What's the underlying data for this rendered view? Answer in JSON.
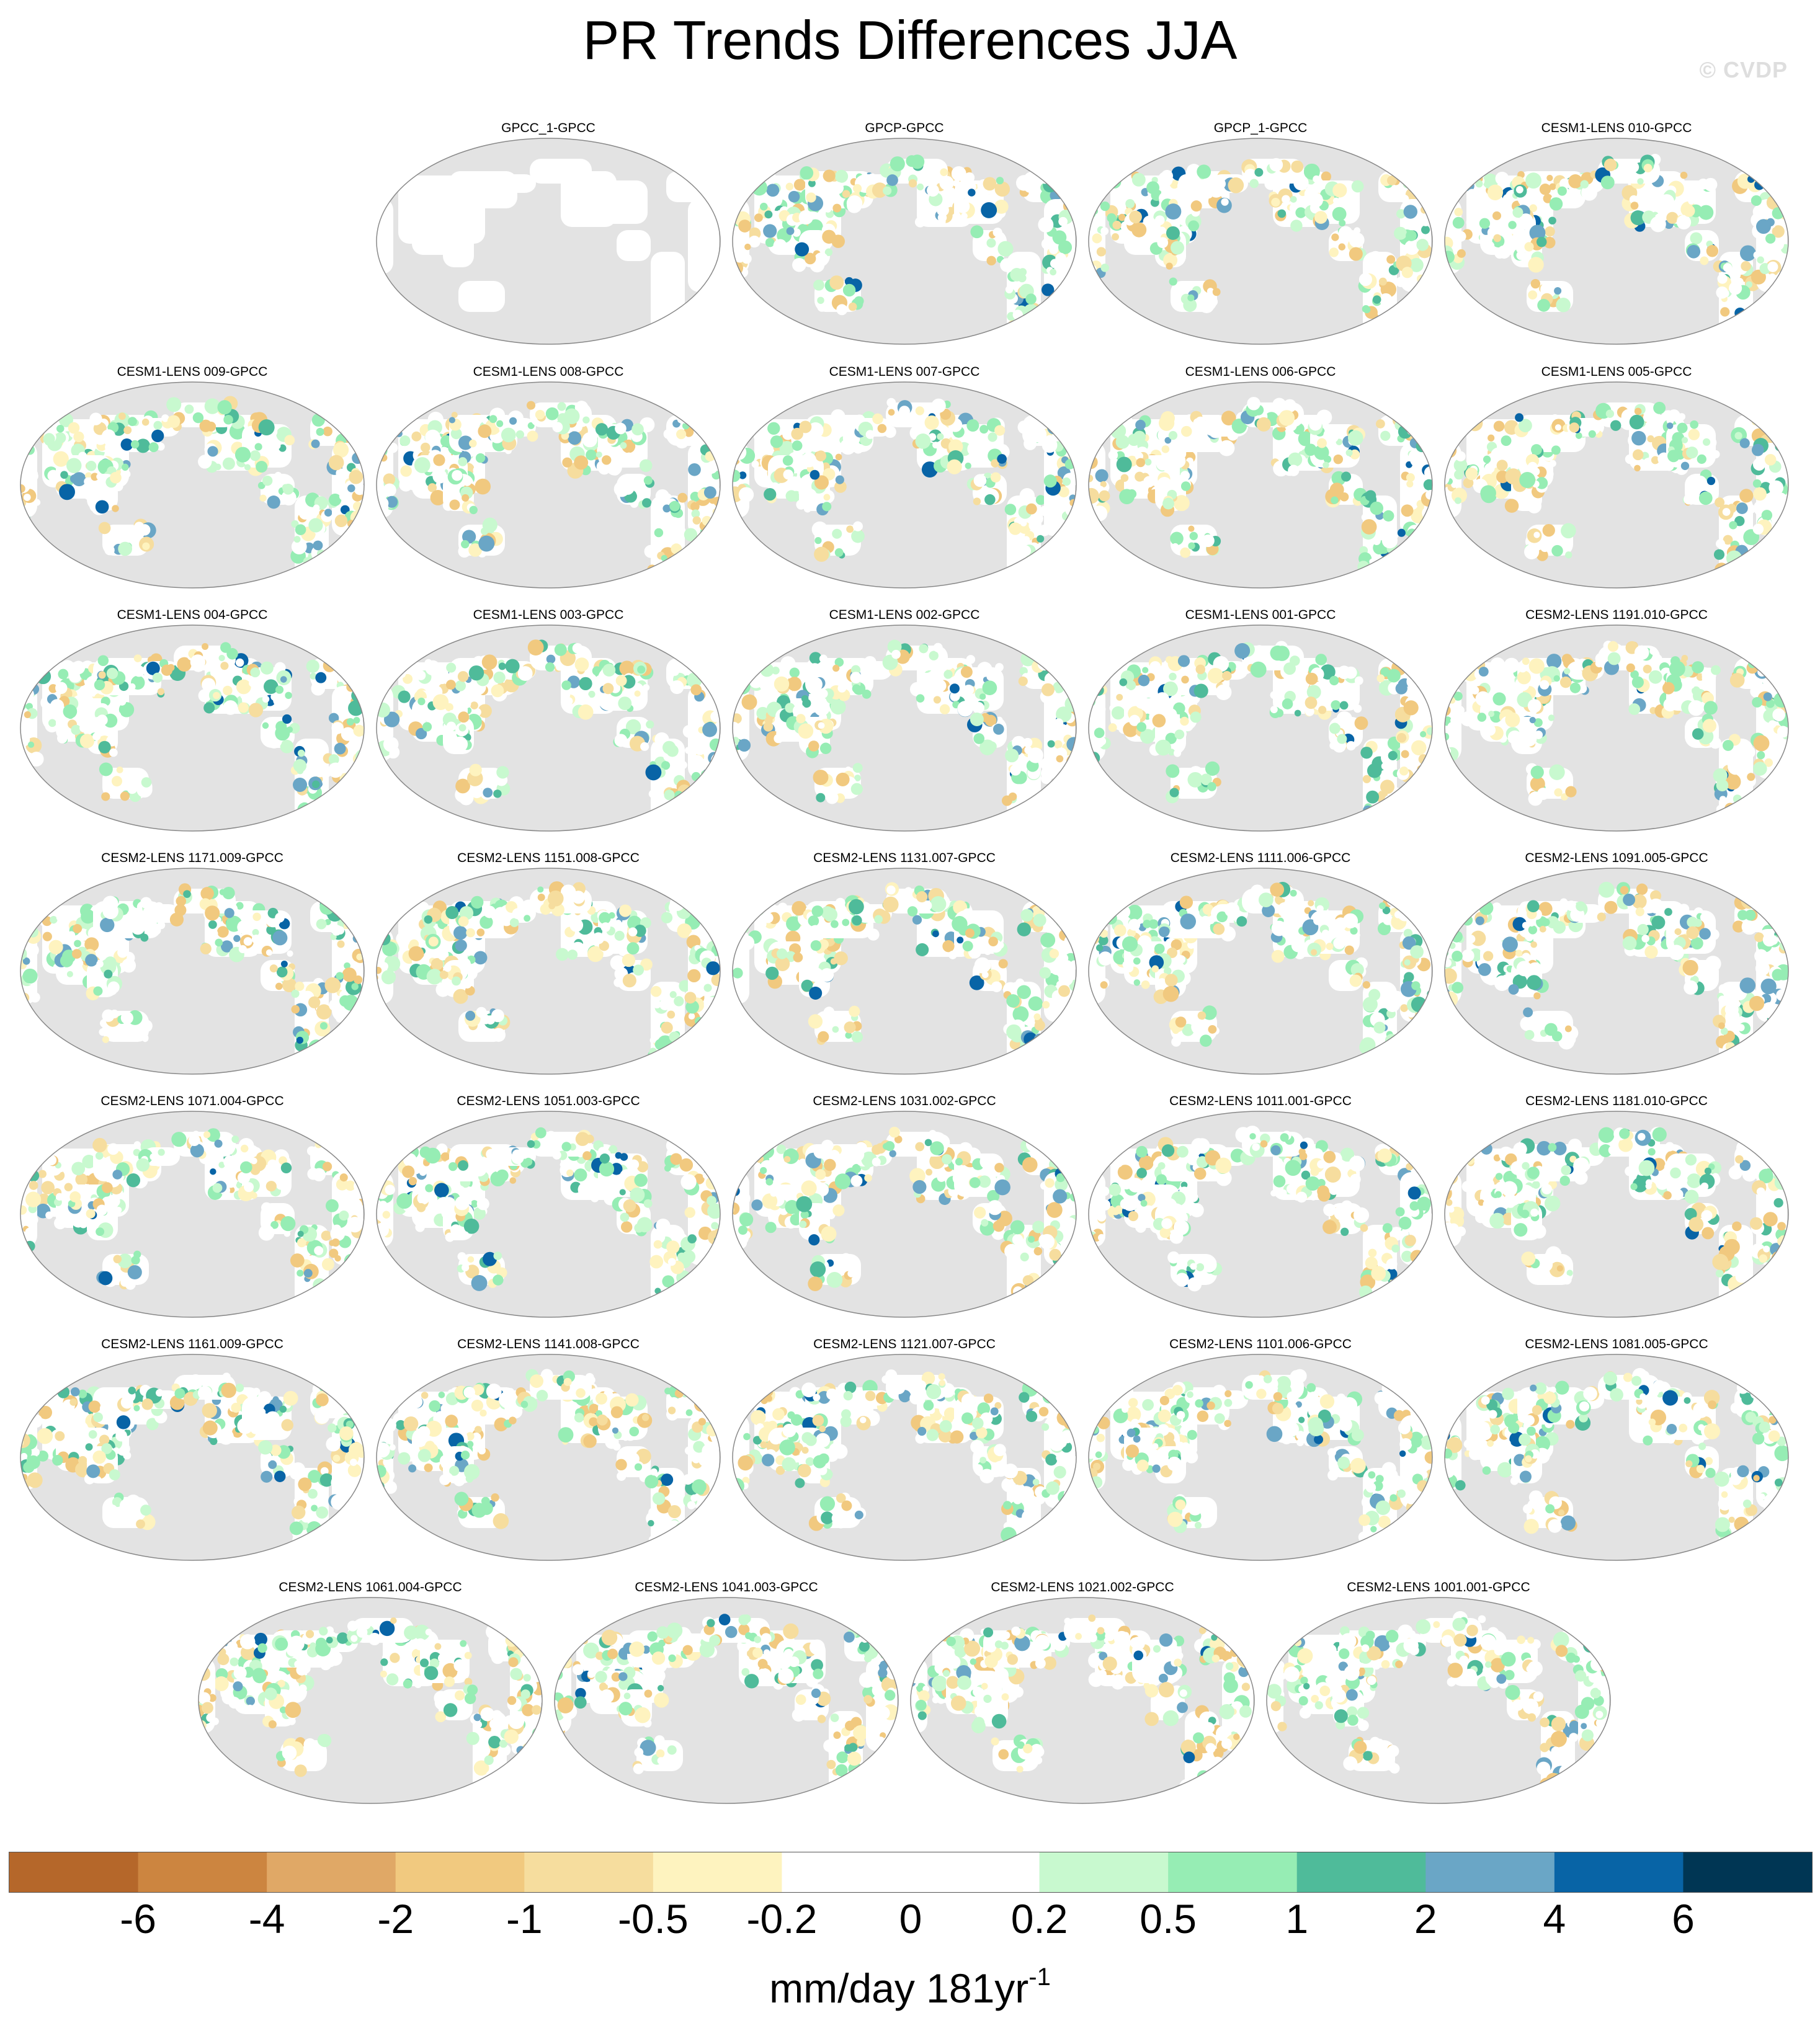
{
  "title": "PR Trends Differences JJA",
  "watermark": "© CVDP",
  "chart_data": {
    "type": "heatmap",
    "map_projection": "robinson-pacific-centered",
    "missing_color": "#e3e3e3",
    "panel_rows": [
      [
        "",
        "GPCC_1-GPCC",
        "GPCP-GPCC",
        "GPCP_1-GPCC",
        "CESM1-LENS 010-GPCC"
      ],
      [
        "CESM1-LENS 009-GPCC",
        "CESM1-LENS 008-GPCC",
        "CESM1-LENS 007-GPCC",
        "CESM1-LENS 006-GPCC",
        "CESM1-LENS 005-GPCC"
      ],
      [
        "CESM1-LENS 004-GPCC",
        "CESM1-LENS 003-GPCC",
        "CESM1-LENS 002-GPCC",
        "CESM1-LENS 001-GPCC",
        "CESM2-LENS 1191.010-GPCC"
      ],
      [
        "CESM2-LENS 1171.009-GPCC",
        "CESM2-LENS 1151.008-GPCC",
        "CESM2-LENS 1131.007-GPCC",
        "CESM2-LENS 1111.006-GPCC",
        "CESM2-LENS 1091.005-GPCC"
      ],
      [
        "CESM2-LENS 1071.004-GPCC",
        "CESM2-LENS 1051.003-GPCC",
        "CESM2-LENS 1031.002-GPCC",
        "CESM2-LENS 1011.001-GPCC",
        "CESM2-LENS 1181.010-GPCC"
      ],
      [
        "CESM2-LENS 1161.009-GPCC",
        "CESM2-LENS 1141.008-GPCC",
        "CESM2-LENS 1121.007-GPCC",
        "CESM2-LENS 1101.006-GPCC",
        "CESM2-LENS 1081.005-GPCC"
      ],
      [
        "CESM2-LENS 1061.004-GPCC",
        "CESM2-LENS 1041.003-GPCC",
        "CESM2-LENS 1021.002-GPCC",
        "CESM2-LENS 1001.001-GPCC"
      ]
    ],
    "colorbar": {
      "unit_base": "mm/day 181yr",
      "unit_exponent": "-1",
      "tick_labels": [
        "-6",
        "-4",
        "-2",
        "-1",
        "-0.5",
        "-0.2",
        "0",
        "0.2",
        "0.5",
        "1",
        "2",
        "4",
        "6"
      ],
      "colors": [
        "#b5672a",
        "#cc8540",
        "#e0a866",
        "#f1c97f",
        "#f6dd9e",
        "#fef3bf",
        "#ffffff",
        "#ffffff",
        "#c8f9cf",
        "#96edb4",
        "#4fbb9a",
        "#6aa6c6",
        "#0864a6",
        "#003654"
      ]
    }
  }
}
